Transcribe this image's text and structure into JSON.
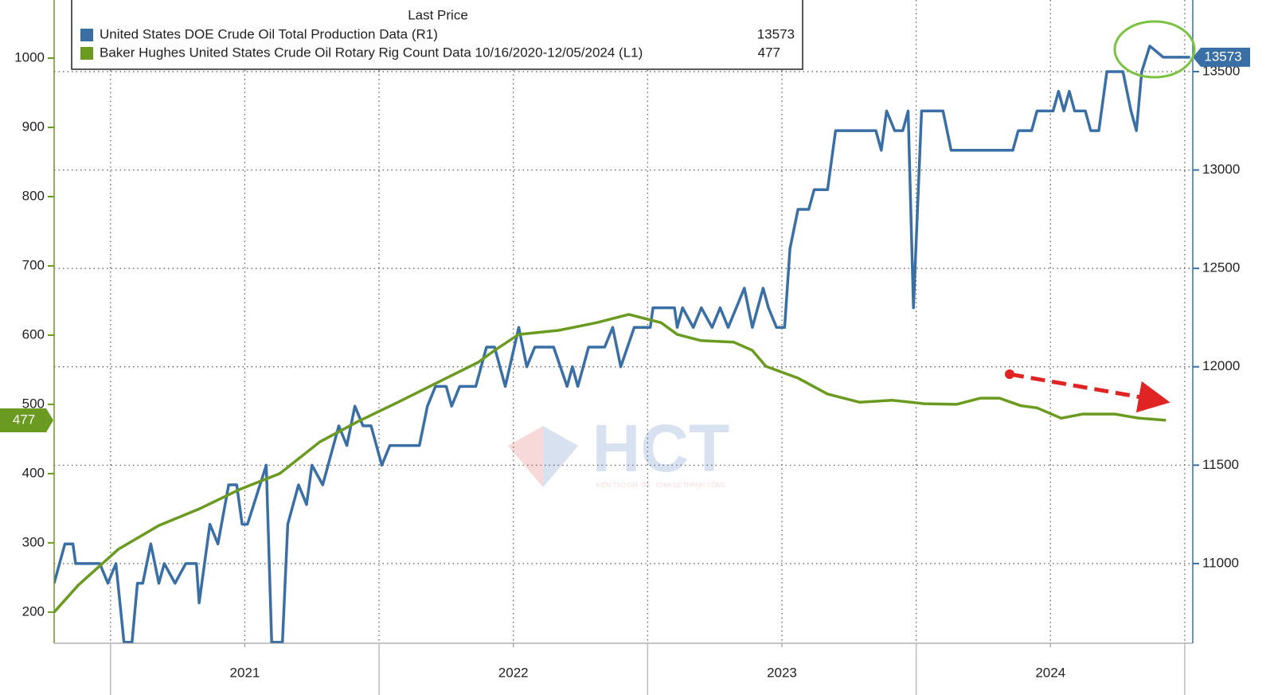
{
  "chart_data": {
    "type": "line",
    "legend_title": "Last Price",
    "watermark": {
      "text": "HCT",
      "tagline": "KIẾN TẠO GIÁ TRỊ - CHIA SẺ THÀNH CÔNG"
    },
    "xlim": [
      2020.79,
      2025.03
    ],
    "xticks": [
      {
        "value": 2021.5,
        "label": "2021"
      },
      {
        "value": 2022.5,
        "label": "2022"
      },
      {
        "value": 2023.5,
        "label": "2023"
      },
      {
        "value": 2024.5,
        "label": "2024"
      }
    ],
    "ylim": [
      155,
      1084
    ],
    "yticks": [
      200,
      300,
      400,
      500,
      600,
      700,
      800,
      900,
      1000
    ],
    "y2lim": [
      10595,
      13864
    ],
    "y2ticks": [
      11000,
      11500,
      12000,
      12500,
      13000,
      13500
    ],
    "grid": true,
    "series": [
      {
        "name": "United States DOE Crude Oil Total Production Data  (R1)",
        "color": "#3a6fa5",
        "axis": "y2",
        "x": [
          2020.79,
          2020.83,
          2020.86,
          2020.87,
          2020.96,
          2020.99,
          2021.02,
          2021.05,
          2021.08,
          2021.1,
          2021.12,
          2021.15,
          2021.18,
          2021.2,
          2021.24,
          2021.28,
          2021.32,
          2021.33,
          2021.37,
          2021.4,
          2021.44,
          2021.47,
          2021.49,
          2021.51,
          2021.58,
          2021.6,
          2021.64,
          2021.66,
          2021.7,
          2021.73,
          2021.75,
          2021.79,
          2021.85,
          2021.88,
          2021.91,
          2021.94,
          2021.97,
          2022.01,
          2022.04,
          2022.15,
          2022.18,
          2022.21,
          2022.25,
          2022.27,
          2022.3,
          2022.36,
          2022.4,
          2022.43,
          2022.47,
          2022.52,
          2022.55,
          2022.58,
          2022.65,
          2022.7,
          2022.72,
          2022.74,
          2022.78,
          2022.84,
          2022.87,
          2022.9,
          2022.95,
          2023.01,
          2023.02,
          2023.1,
          2023.11,
          2023.13,
          2023.17,
          2023.2,
          2023.24,
          2023.27,
          2023.3,
          2023.33,
          2023.36,
          2023.39,
          2023.43,
          2023.45,
          2023.48,
          2023.51,
          2023.53,
          2023.56,
          2023.6,
          2023.62,
          2023.67,
          2023.7,
          2023.85,
          2023.87,
          2023.89,
          2023.92,
          2023.95,
          2023.97,
          2023.99,
          2024.02,
          2024.1,
          2024.13,
          2024.36,
          2024.38,
          2024.43,
          2024.45,
          2024.51,
          2024.53,
          2024.55,
          2024.57,
          2024.59,
          2024.63,
          2024.65,
          2024.68,
          2024.71,
          2024.77,
          2024.8,
          2024.82,
          2024.84,
          2024.87,
          2024.92,
          2025.02
        ],
        "values": [
          10900,
          11100,
          11100,
          11000,
          11000,
          10900,
          11000,
          10600,
          10600,
          10900,
          10900,
          11100,
          10900,
          11000,
          10900,
          11000,
          11000,
          10800,
          11200,
          11100,
          11400,
          11400,
          11200,
          11200,
          11500,
          10600,
          10600,
          11200,
          11400,
          11300,
          11500,
          11400,
          11700,
          11600,
          11800,
          11700,
          11700,
          11500,
          11600,
          11600,
          11800,
          11900,
          11900,
          11800,
          11900,
          11900,
          12100,
          12100,
          11900,
          12200,
          12000,
          12100,
          12100,
          11900,
          12000,
          11900,
          12100,
          12100,
          12200,
          12000,
          12200,
          12200,
          12300,
          12300,
          12200,
          12300,
          12200,
          12300,
          12200,
          12300,
          12200,
          12300,
          12400,
          12200,
          12400,
          12300,
          12200,
          12200,
          12600,
          12800,
          12800,
          12900,
          12900,
          13200,
          13200,
          13100,
          13300,
          13200,
          13200,
          13300,
          12300,
          13300,
          13300,
          13100,
          13100,
          13200,
          13200,
          13300,
          13300,
          13400,
          13300,
          13400,
          13300,
          13300,
          13200,
          13200,
          13500,
          13500,
          13300,
          13200,
          13500,
          13630,
          13573,
          13573
        ]
      },
      {
        "name": "Baker Hughes United States Crude Oil Rotary Rig Count Data 10/16/2020-12/05/2024  (L1)",
        "color": "#6a9a1f",
        "axis": "y",
        "x": [
          2020.79,
          2020.88,
          2021.03,
          2021.18,
          2021.33,
          2021.48,
          2021.63,
          2021.78,
          2021.92,
          2022.07,
          2022.22,
          2022.37,
          2022.43,
          2022.52,
          2022.67,
          2022.81,
          2022.93,
          2023.05,
          2023.11,
          2023.2,
          2023.32,
          2023.39,
          2023.44,
          2023.56,
          2023.67,
          2023.79,
          2023.91,
          2024.03,
          2024.15,
          2024.24,
          2024.31,
          2024.39,
          2024.45,
          2024.54,
          2024.62,
          2024.74,
          2024.83,
          2024.93
        ],
        "values": [
          200,
          239,
          291,
          325,
          349,
          377,
          400,
          446,
          475,
          503,
          532,
          561,
          578,
          601,
          607,
          618,
          630,
          618,
          601,
          592,
          590,
          578,
          555,
          538,
          515,
          503,
          506,
          501,
          500,
          509,
          509,
          498,
          495,
          480,
          486,
          486,
          480,
          477
        ]
      }
    ]
  }
}
